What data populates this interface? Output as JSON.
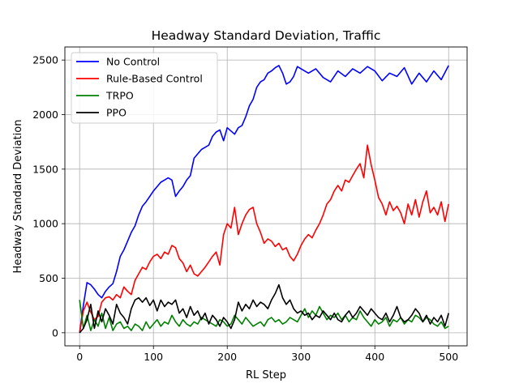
{
  "chart_data": {
    "type": "line",
    "title": "Headway Standard Deviation, Traffic",
    "xlabel": "RL Step",
    "ylabel": "Headway Standard Deviation",
    "xlim": [
      -20,
      525
    ],
    "ylim": [
      -120,
      2620
    ],
    "xticks": [
      0,
      100,
      200,
      300,
      400,
      500
    ],
    "yticks": [
      0,
      500,
      1000,
      1500,
      2000,
      2500
    ],
    "xtick_labels": [
      "0",
      "100",
      "200",
      "300",
      "400",
      "500"
    ],
    "ytick_labels": [
      "0",
      "500",
      "1000",
      "1500",
      "2000",
      "2500"
    ],
    "grid": true,
    "legend_position": "top-left",
    "series": [
      {
        "name": "No Control",
        "color": "#0000ff",
        "x": [
          0,
          5,
          10,
          15,
          20,
          25,
          30,
          35,
          40,
          45,
          50,
          55,
          60,
          65,
          70,
          75,
          80,
          85,
          90,
          95,
          100,
          105,
          110,
          115,
          120,
          125,
          130,
          135,
          140,
          145,
          150,
          155,
          160,
          165,
          170,
          175,
          180,
          185,
          190,
          195,
          200,
          205,
          210,
          215,
          220,
          225,
          230,
          235,
          240,
          245,
          250,
          255,
          260,
          265,
          270,
          275,
          280,
          285,
          290,
          295,
          300,
          310,
          320,
          330,
          340,
          350,
          360,
          370,
          380,
          390,
          400,
          410,
          420,
          430,
          440,
          450,
          460,
          470,
          480,
          490,
          500
        ],
        "y": [
          0,
          250,
          460,
          440,
          400,
          350,
          320,
          380,
          420,
          450,
          560,
          700,
          760,
          840,
          920,
          980,
          1080,
          1160,
          1200,
          1250,
          1300,
          1340,
          1380,
          1400,
          1420,
          1400,
          1250,
          1300,
          1340,
          1400,
          1440,
          1600,
          1640,
          1680,
          1700,
          1720,
          1800,
          1840,
          1860,
          1760,
          1880,
          1850,
          1820,
          1880,
          1900,
          1980,
          2080,
          2140,
          2250,
          2300,
          2320,
          2380,
          2400,
          2430,
          2450,
          2380,
          2280,
          2300,
          2350,
          2440,
          2420,
          2380,
          2420,
          2340,
          2300,
          2400,
          2350,
          2420,
          2380,
          2440,
          2400,
          2310,
          2380,
          2350,
          2430,
          2280,
          2380,
          2300,
          2400,
          2320,
          2450
        ]
      },
      {
        "name": "Rule-Based Control",
        "color": "#ff0000",
        "x": [
          0,
          5,
          10,
          15,
          20,
          25,
          30,
          35,
          40,
          45,
          50,
          55,
          60,
          65,
          70,
          75,
          80,
          85,
          90,
          95,
          100,
          105,
          110,
          115,
          120,
          125,
          130,
          135,
          140,
          145,
          150,
          155,
          160,
          165,
          170,
          175,
          180,
          185,
          190,
          195,
          200,
          205,
          210,
          215,
          220,
          225,
          230,
          235,
          240,
          245,
          250,
          255,
          260,
          265,
          270,
          275,
          280,
          285,
          290,
          295,
          300,
          305,
          310,
          315,
          320,
          325,
          330,
          335,
          340,
          345,
          350,
          355,
          360,
          365,
          370,
          375,
          380,
          385,
          390,
          395,
          400,
          405,
          410,
          415,
          420,
          425,
          430,
          435,
          440,
          445,
          450,
          455,
          460,
          465,
          470,
          475,
          480,
          485,
          490,
          495,
          500
        ],
        "y": [
          0,
          200,
          280,
          190,
          120,
          150,
          280,
          320,
          330,
          300,
          350,
          320,
          420,
          380,
          350,
          480,
          540,
          600,
          580,
          650,
          700,
          720,
          680,
          740,
          720,
          800,
          780,
          680,
          640,
          560,
          620,
          540,
          520,
          560,
          600,
          650,
          700,
          740,
          620,
          900,
          1000,
          960,
          1150,
          900,
          1000,
          1080,
          1130,
          1150,
          1000,
          920,
          820,
          860,
          840,
          790,
          820,
          760,
          780,
          700,
          660,
          720,
          800,
          860,
          900,
          870,
          940,
          1000,
          1080,
          1180,
          1220,
          1300,
          1350,
          1300,
          1400,
          1380,
          1440,
          1500,
          1550,
          1420,
          1720,
          1540,
          1400,
          1240,
          1180,
          1080,
          1200,
          1120,
          1160,
          1100,
          1000,
          1180,
          1080,
          1220,
          1060,
          1200,
          1300,
          1100,
          1150,
          1080,
          1200,
          1020,
          1180
        ]
      },
      {
        "name": "TRPO",
        "color": "#008000",
        "x": [
          0,
          5,
          10,
          15,
          20,
          25,
          30,
          35,
          40,
          45,
          50,
          55,
          60,
          65,
          70,
          75,
          80,
          85,
          90,
          95,
          100,
          105,
          110,
          115,
          120,
          125,
          130,
          135,
          140,
          145,
          150,
          155,
          160,
          165,
          170,
          175,
          180,
          185,
          190,
          195,
          200,
          205,
          210,
          215,
          220,
          225,
          230,
          235,
          240,
          245,
          250,
          255,
          260,
          265,
          270,
          275,
          280,
          285,
          290,
          295,
          300,
          305,
          310,
          315,
          320,
          325,
          330,
          335,
          340,
          345,
          350,
          355,
          360,
          365,
          370,
          375,
          380,
          385,
          390,
          395,
          400,
          405,
          410,
          415,
          420,
          425,
          430,
          435,
          440,
          445,
          450,
          455,
          460,
          465,
          470,
          475,
          480,
          485,
          490,
          495,
          500
        ],
        "y": [
          300,
          40,
          160,
          20,
          120,
          60,
          180,
          40,
          140,
          20,
          80,
          100,
          40,
          60,
          20,
          80,
          60,
          20,
          100,
          40,
          80,
          120,
          60,
          100,
          80,
          160,
          100,
          60,
          120,
          80,
          60,
          100,
          80,
          140,
          120,
          100,
          80,
          60,
          120,
          100,
          60,
          80,
          160,
          120,
          80,
          140,
          100,
          60,
          80,
          100,
          60,
          120,
          140,
          100,
          120,
          80,
          100,
          140,
          120,
          100,
          160,
          220,
          140,
          200,
          160,
          240,
          180,
          120,
          160,
          140,
          180,
          120,
          160,
          100,
          140,
          120,
          200,
          140,
          100,
          60,
          120,
          80,
          100,
          140,
          60,
          120,
          100,
          140,
          80,
          120,
          100,
          160,
          140,
          100,
          140,
          120,
          80,
          60,
          100,
          40,
          60
        ]
      },
      {
        "name": "PPO",
        "color": "#000000",
        "x": [
          0,
          5,
          10,
          15,
          20,
          25,
          30,
          35,
          40,
          45,
          50,
          55,
          60,
          65,
          70,
          75,
          80,
          85,
          90,
          95,
          100,
          105,
          110,
          115,
          120,
          125,
          130,
          135,
          140,
          145,
          150,
          155,
          160,
          165,
          170,
          175,
          180,
          185,
          190,
          195,
          200,
          205,
          210,
          215,
          220,
          225,
          230,
          235,
          240,
          245,
          250,
          255,
          260,
          265,
          270,
          275,
          280,
          285,
          290,
          295,
          300,
          305,
          310,
          315,
          320,
          325,
          330,
          335,
          340,
          345,
          350,
          355,
          360,
          365,
          370,
          375,
          380,
          385,
          390,
          395,
          400,
          405,
          410,
          415,
          420,
          425,
          430,
          435,
          440,
          445,
          450,
          455,
          460,
          465,
          470,
          475,
          480,
          485,
          490,
          495,
          500
        ],
        "y": [
          0,
          40,
          120,
          260,
          40,
          200,
          100,
          220,
          160,
          80,
          260,
          180,
          140,
          80,
          220,
          300,
          320,
          280,
          320,
          250,
          300,
          200,
          300,
          240,
          280,
          260,
          300,
          180,
          220,
          140,
          240,
          160,
          200,
          120,
          180,
          80,
          160,
          120,
          60,
          140,
          100,
          40,
          120,
          280,
          200,
          260,
          220,
          300,
          240,
          280,
          260,
          220,
          300,
          360,
          440,
          320,
          260,
          300,
          220,
          180,
          200,
          160,
          180,
          120,
          160,
          140,
          200,
          160,
          120,
          180,
          120,
          100,
          160,
          200,
          140,
          180,
          240,
          200,
          160,
          220,
          180,
          140,
          120,
          180,
          100,
          160,
          240,
          140,
          100,
          120,
          160,
          220,
          180,
          100,
          160,
          80,
          140,
          100,
          160,
          60,
          180
        ]
      }
    ]
  }
}
